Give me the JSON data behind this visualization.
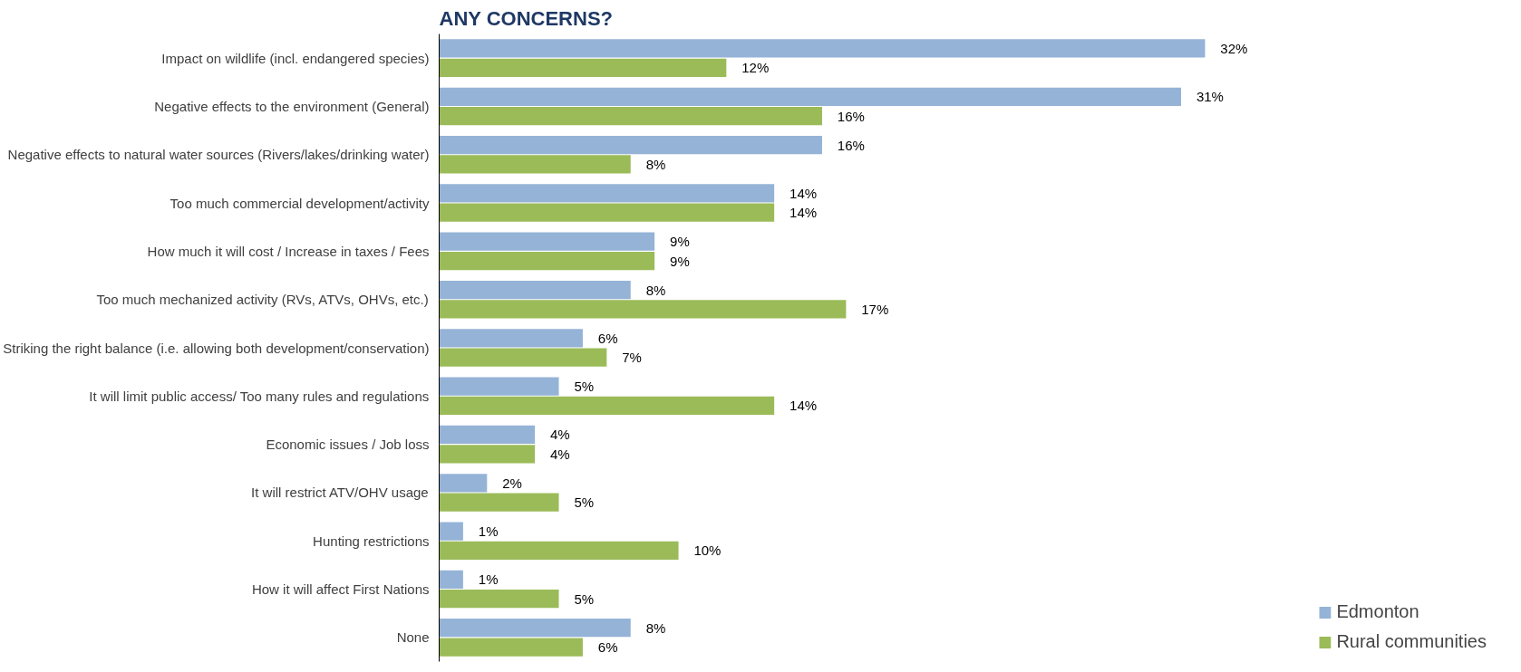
{
  "chart_data": {
    "type": "bar",
    "orientation": "horizontal",
    "title": "ANY CONCERNS?",
    "categories": [
      "Impact on wildlife (incl. endangered species)",
      "Negative effects to the environment (General)",
      "Negative effects to natural water sources (Rivers/lakes/drinking water)",
      "Too much commercial development/activity",
      "How much it will cost / Increase in taxes / Fees",
      "Too much mechanized activity (RVs, ATVs, OHVs, etc.)",
      "Striking the right balance (i.e. allowing both development/conservation)",
      "It will limit public access/ Too many rules and regulations",
      "Economic issues / Job loss",
      "It will restrict ATV/OHV usage",
      "Hunting restrictions",
      "How it will affect First Nations",
      "None"
    ],
    "series": [
      {
        "name": "Edmonton",
        "color": "#95b3d7",
        "values": [
          32,
          31,
          16,
          14,
          9,
          8,
          6,
          5,
          4,
          2,
          1,
          1,
          8
        ],
        "value_labels": [
          "32%",
          "31%",
          "16%",
          "14%",
          "9%",
          "8%",
          "6%",
          "5%",
          "4%",
          "2%",
          "1%",
          "1%",
          "8%"
        ]
      },
      {
        "name": "Rural communities",
        "color": "#9bbb59",
        "values": [
          12,
          16,
          8,
          14,
          9,
          17,
          7,
          14,
          4,
          5,
          10,
          5,
          6
        ],
        "value_labels": [
          "12%",
          "16%",
          "8%",
          "14%",
          "9%",
          "17%",
          "7%",
          "14%",
          "4%",
          "5%",
          "10%",
          "5%",
          "6%"
        ]
      }
    ],
    "tick_labels": "y",
    "legend": "bottom right",
    "grid": false
  }
}
